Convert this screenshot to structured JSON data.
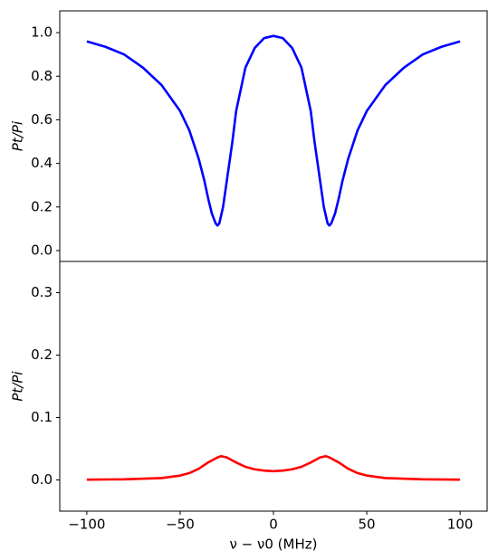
{
  "chart_data": [
    {
      "type": "line",
      "ylabel": "Pt/Pi",
      "x": [
        -100,
        -90,
        -80,
        -70,
        -60,
        -50,
        -45,
        -40,
        -37,
        -35,
        -33,
        -31,
        -30,
        -29,
        -27,
        -25,
        -22,
        -20,
        -15,
        -10,
        -5,
        0,
        5,
        10,
        15,
        20,
        22,
        25,
        27,
        29,
        30,
        31,
        33,
        35,
        37,
        40,
        45,
        50,
        60,
        70,
        80,
        90,
        100
      ],
      "series": [
        {
          "color": "#0000ff",
          "values": [
            0.96,
            0.935,
            0.9,
            0.84,
            0.76,
            0.64,
            0.55,
            0.42,
            0.32,
            0.24,
            0.17,
            0.125,
            0.115,
            0.125,
            0.2,
            0.32,
            0.5,
            0.64,
            0.84,
            0.93,
            0.975,
            0.985,
            0.975,
            0.93,
            0.84,
            0.64,
            0.5,
            0.32,
            0.2,
            0.125,
            0.115,
            0.125,
            0.17,
            0.24,
            0.32,
            0.42,
            0.55,
            0.64,
            0.76,
            0.84,
            0.9,
            0.935,
            0.96
          ]
        }
      ],
      "xlim": [
        -114.5,
        114.5
      ],
      "ylim": [
        -0.05,
        1.1
      ],
      "yticks": [
        {
          "value": 0,
          "label": "0.0"
        },
        {
          "value": 0.2,
          "label": "0.2"
        },
        {
          "value": 0.4,
          "label": "0.4"
        },
        {
          "value": 0.6,
          "label": "0.6"
        },
        {
          "value": 0.8,
          "label": "0.8"
        },
        {
          "value": 1,
          "label": "1.0"
        }
      ]
    },
    {
      "type": "line",
      "ylabel": "Pt/Pi",
      "xlabel": "ν − ν0 (MHz)",
      "x": [
        -100,
        -80,
        -60,
        -50,
        -45,
        -40,
        -35,
        -30,
        -28,
        -25,
        -20,
        -15,
        -10,
        -5,
        0,
        5,
        10,
        15,
        20,
        25,
        28,
        30,
        35,
        40,
        45,
        50,
        60,
        80,
        100
      ],
      "series": [
        {
          "color": "#ff0000",
          "values": [
            0.0005,
            0.001,
            0.003,
            0.007,
            0.011,
            0.018,
            0.028,
            0.036,
            0.038,
            0.036,
            0.028,
            0.021,
            0.017,
            0.015,
            0.014,
            0.015,
            0.017,
            0.021,
            0.028,
            0.036,
            0.038,
            0.036,
            0.028,
            0.018,
            0.011,
            0.007,
            0.003,
            0.001,
            0.0005
          ]
        }
      ],
      "xlim": [
        -114.5,
        114.5
      ],
      "ylim": [
        -0.05,
        0.35
      ],
      "xticks": [
        {
          "value": -100,
          "label": "−100"
        },
        {
          "value": -50,
          "label": "−50"
        },
        0,
        50,
        100
      ],
      "yticks": [
        {
          "value": 0,
          "label": "0.0"
        },
        {
          "value": 0.1,
          "label": "0.1"
        },
        {
          "value": 0.2,
          "label": "0.2"
        },
        {
          "value": 0.3,
          "label": "0.3"
        }
      ]
    }
  ]
}
